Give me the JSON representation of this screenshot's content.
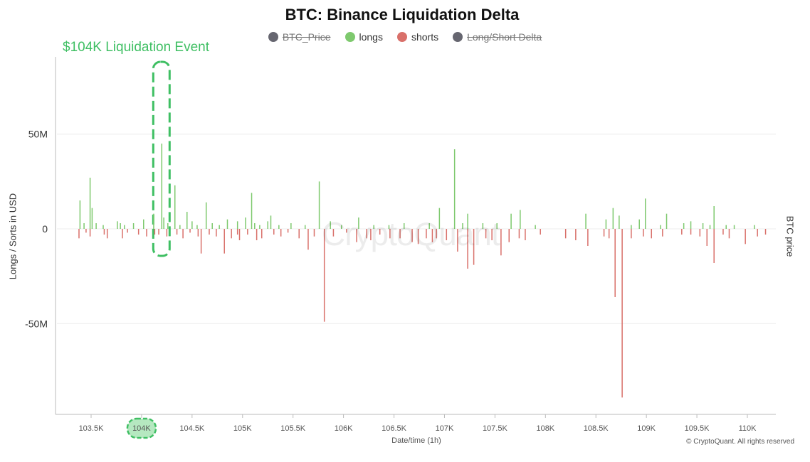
{
  "chart_data": {
    "type": "bar",
    "title": "BTC: Binance Liquidation Delta",
    "ylabel": "Longs / Sorts in USD",
    "y2label": "BTC price",
    "xlabel": "Date/time (1h)",
    "ylim": [
      -98,
      88
    ],
    "xlim": [
      103.3,
      110.25
    ],
    "y_ticks": [
      {
        "value": 50,
        "label": "50M"
      },
      {
        "value": 0,
        "label": "0"
      },
      {
        "value": -50,
        "label": "-50M"
      }
    ],
    "x_ticks": [
      {
        "value": 103.5,
        "label": "103.5K"
      },
      {
        "value": 104.0,
        "label": "104K"
      },
      {
        "value": 104.5,
        "label": "104.5K"
      },
      {
        "value": 105.0,
        "label": "105K"
      },
      {
        "value": 105.5,
        "label": "105.5K"
      },
      {
        "value": 106.0,
        "label": "106K"
      },
      {
        "value": 106.5,
        "label": "106.5K"
      },
      {
        "value": 107.0,
        "label": "107K"
      },
      {
        "value": 107.5,
        "label": "107.5K"
      },
      {
        "value": 108.0,
        "label": "108K"
      },
      {
        "value": 108.5,
        "label": "108.5K"
      },
      {
        "value": 109.0,
        "label": "109K"
      },
      {
        "value": 109.5,
        "label": "109.5K"
      },
      {
        "value": 110.0,
        "label": "110K"
      }
    ],
    "grid": true,
    "legend_position": "top-center",
    "legend": [
      {
        "label": "BTC_Price",
        "color": "#666670",
        "hidden": true
      },
      {
        "label": "longs",
        "color": "#7ec96e",
        "hidden": false
      },
      {
        "label": "shorts",
        "color": "#d9706a",
        "hidden": false
      },
      {
        "label": "Long/Short Delta",
        "color": "#666670",
        "hidden": true
      }
    ],
    "annotation": {
      "label": "$104K Liquidation Event",
      "x": 104.2,
      "color": "#3fbf63"
    },
    "series": [
      {
        "name": "longs",
        "color": "#7ec96e",
        "points": [
          [
            103.39,
            15
          ],
          [
            103.43,
            3
          ],
          [
            103.49,
            27
          ],
          [
            103.51,
            11
          ],
          [
            103.55,
            3
          ],
          [
            103.62,
            2
          ],
          [
            103.76,
            4
          ],
          [
            103.79,
            3
          ],
          [
            103.83,
            2
          ],
          [
            103.92,
            3
          ],
          [
            104.02,
            5
          ],
          [
            104.12,
            8
          ],
          [
            104.2,
            45
          ],
          [
            104.22,
            6
          ],
          [
            104.26,
            3
          ],
          [
            104.33,
            23
          ],
          [
            104.38,
            2
          ],
          [
            104.45,
            9
          ],
          [
            104.5,
            4
          ],
          [
            104.55,
            2
          ],
          [
            104.64,
            14
          ],
          [
            104.7,
            3
          ],
          [
            104.77,
            2
          ],
          [
            104.85,
            5
          ],
          [
            104.95,
            4
          ],
          [
            105.03,
            6
          ],
          [
            105.09,
            19
          ],
          [
            105.12,
            3
          ],
          [
            105.17,
            2
          ],
          [
            105.25,
            4
          ],
          [
            105.28,
            7
          ],
          [
            105.36,
            2
          ],
          [
            105.48,
            3
          ],
          [
            105.62,
            2
          ],
          [
            105.76,
            25
          ],
          [
            105.87,
            4
          ],
          [
            105.98,
            2
          ],
          [
            106.15,
            6
          ],
          [
            106.3,
            2
          ],
          [
            106.45,
            2
          ],
          [
            106.6,
            3
          ],
          [
            106.85,
            3
          ],
          [
            106.95,
            11
          ],
          [
            107.1,
            42
          ],
          [
            107.18,
            3
          ],
          [
            107.23,
            8
          ],
          [
            107.38,
            3
          ],
          [
            107.52,
            3
          ],
          [
            107.66,
            8
          ],
          [
            107.75,
            10
          ],
          [
            107.9,
            2
          ],
          [
            108.4,
            8
          ],
          [
            108.6,
            5
          ],
          [
            108.67,
            11
          ],
          [
            108.73,
            7
          ],
          [
            108.85,
            2
          ],
          [
            108.93,
            5
          ],
          [
            108.99,
            16
          ],
          [
            109.14,
            2
          ],
          [
            109.2,
            8
          ],
          [
            109.37,
            3
          ],
          [
            109.44,
            4
          ],
          [
            109.56,
            3
          ],
          [
            109.63,
            2
          ],
          [
            109.67,
            12
          ],
          [
            109.79,
            2
          ],
          [
            109.87,
            2
          ],
          [
            110.07,
            2
          ]
        ]
      },
      {
        "name": "shorts",
        "color": "#d9706a",
        "points": [
          [
            103.38,
            -5
          ],
          [
            103.45,
            -2
          ],
          [
            103.49,
            -4
          ],
          [
            103.63,
            -3
          ],
          [
            103.66,
            -5
          ],
          [
            103.81,
            -5
          ],
          [
            103.86,
            -2
          ],
          [
            103.97,
            -3
          ],
          [
            104.05,
            -4
          ],
          [
            104.13,
            -3
          ],
          [
            104.17,
            -3
          ],
          [
            104.25,
            -4
          ],
          [
            104.35,
            -3
          ],
          [
            104.41,
            -5
          ],
          [
            104.48,
            -2
          ],
          [
            104.56,
            -4
          ],
          [
            104.59,
            -13
          ],
          [
            104.67,
            -3
          ],
          [
            104.74,
            -4
          ],
          [
            104.82,
            -13
          ],
          [
            104.89,
            -5
          ],
          [
            104.95,
            -3
          ],
          [
            104.97,
            -6
          ],
          [
            105.05,
            -3
          ],
          [
            105.14,
            -6
          ],
          [
            105.19,
            -5
          ],
          [
            105.31,
            -3
          ],
          [
            105.38,
            -4
          ],
          [
            105.45,
            -2
          ],
          [
            105.56,
            -5
          ],
          [
            105.65,
            -11
          ],
          [
            105.71,
            -4
          ],
          [
            105.81,
            -49
          ],
          [
            105.9,
            -4
          ],
          [
            106.03,
            -2
          ],
          [
            106.13,
            -7
          ],
          [
            106.23,
            -5
          ],
          [
            106.27,
            -6
          ],
          [
            106.36,
            -3
          ],
          [
            106.46,
            -5
          ],
          [
            106.56,
            -5
          ],
          [
            106.68,
            -7
          ],
          [
            106.74,
            -8
          ],
          [
            106.82,
            -5
          ],
          [
            106.88,
            -7
          ],
          [
            106.92,
            -5
          ],
          [
            107.02,
            -6
          ],
          [
            107.13,
            -12
          ],
          [
            107.23,
            -21
          ],
          [
            107.29,
            -19
          ],
          [
            107.41,
            -5
          ],
          [
            107.47,
            -6
          ],
          [
            107.56,
            -14
          ],
          [
            107.64,
            -7
          ],
          [
            107.74,
            -5
          ],
          [
            107.8,
            -6
          ],
          [
            107.95,
            -3
          ],
          [
            108.2,
            -5
          ],
          [
            108.3,
            -6
          ],
          [
            108.42,
            -9
          ],
          [
            108.58,
            -4
          ],
          [
            108.63,
            -5
          ],
          [
            108.69,
            -36
          ],
          [
            108.76,
            -89
          ],
          [
            108.85,
            -5
          ],
          [
            108.97,
            -4
          ],
          [
            109.05,
            -5
          ],
          [
            109.16,
            -4
          ],
          [
            109.35,
            -3
          ],
          [
            109.44,
            -3
          ],
          [
            109.53,
            -4
          ],
          [
            109.6,
            -9
          ],
          [
            109.67,
            -18
          ],
          [
            109.76,
            -3
          ],
          [
            109.82,
            -5
          ],
          [
            109.98,
            -8
          ],
          [
            110.1,
            -4
          ],
          [
            110.18,
            -3
          ]
        ]
      }
    ]
  },
  "watermark": "CryptoQuant",
  "copyright": "© CryptoQuant. All rights reserved"
}
